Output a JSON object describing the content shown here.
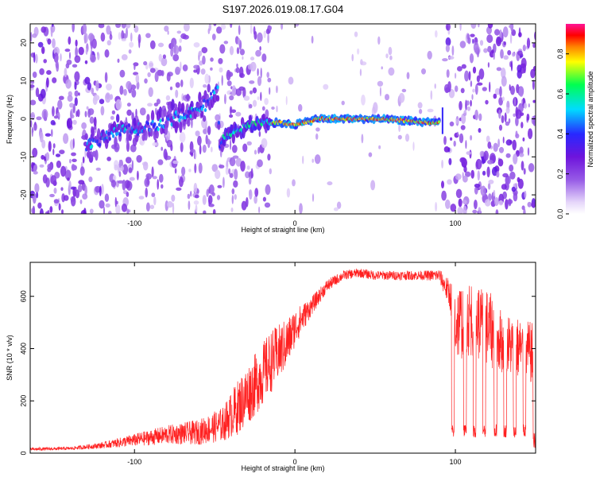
{
  "chart_data": [
    {
      "type": "heatmap",
      "title": "S197.2026.019.08.17.G04",
      "xlabel": "Height of straight line (km)",
      "ylabel": "Frequency (Hz)",
      "xlim": [
        -165,
        150
      ],
      "ylim": [
        -25,
        25
      ],
      "xticks": [
        -100,
        0,
        100
      ],
      "yticks": [
        -20,
        -10,
        0,
        10,
        20
      ],
      "colorbar": {
        "label": "Normalized spectral amplitude",
        "range": [
          0,
          0.95
        ],
        "ticks": [
          "0.0",
          "0.2",
          "0.4",
          "0.6",
          "0.8"
        ],
        "tick_values": [
          0.0,
          0.2,
          0.4,
          0.6,
          0.8
        ],
        "colors": [
          "#ffffff",
          "#7a1fd8",
          "#1a1aff",
          "#00e5ff",
          "#00ff40",
          "#ffff00",
          "#ff8000",
          "#ff0000",
          "#ff1493"
        ]
      },
      "ridge": {
        "description_points_km_hz": [
          [
            -125,
            -7
          ],
          [
            -110,
            -3
          ],
          [
            -90,
            -2
          ],
          [
            -70,
            1
          ],
          [
            -55,
            4
          ],
          [
            -48,
            8
          ],
          [
            -47,
            -6
          ],
          [
            -40,
            -4
          ],
          [
            -30,
            -2
          ],
          [
            -20,
            -1
          ],
          [
            -10,
            -1
          ],
          [
            0,
            -1.5
          ],
          [
            15,
            0
          ],
          [
            30,
            0
          ],
          [
            50,
            0
          ],
          [
            70,
            -0.5
          ],
          [
            85,
            -1
          ],
          [
            90,
            -1
          ]
        ],
        "peak_amplitude": 0.95,
        "noise_amplitude": 0.3
      }
    },
    {
      "type": "line",
      "xlabel": "Height of straight line (km)",
      "ylabel": "SNR (10 * v/v)",
      "xlim": [
        -165,
        150
      ],
      "ylim": [
        0,
        730
      ],
      "xticks": [
        -100,
        0,
        100
      ],
      "yticks": [
        0,
        200,
        400,
        600
      ],
      "series": [
        {
          "name": "SNR",
          "color": "#ff2020",
          "envelope_x": [
            -165,
            -140,
            -120,
            -100,
            -80,
            -60,
            -45,
            -35,
            -25,
            -15,
            -5,
            0,
            10,
            20,
            30,
            40,
            50,
            60,
            70,
            80,
            90,
            97,
            100,
            110,
            120,
            130,
            140,
            148,
            150
          ],
          "envelope_mean": [
            15,
            18,
            30,
            50,
            70,
            80,
            110,
            180,
            260,
            350,
            420,
            480,
            560,
            640,
            680,
            690,
            680,
            680,
            680,
            680,
            680,
            600,
            500,
            520,
            480,
            420,
            400,
            380,
            50
          ],
          "envelope_spread": [
            10,
            10,
            20,
            40,
            60,
            80,
            110,
            180,
            200,
            200,
            160,
            120,
            60,
            40,
            30,
            30,
            30,
            30,
            30,
            30,
            40,
            100,
            250,
            250,
            250,
            200,
            200,
            200,
            30
          ]
        }
      ]
    }
  ]
}
